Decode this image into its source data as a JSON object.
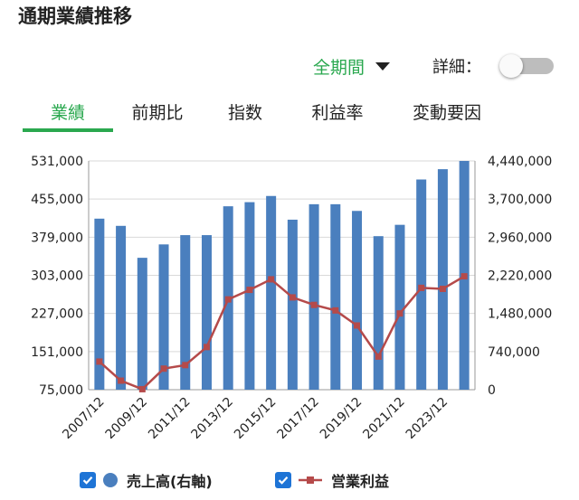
{
  "header": {
    "title": "通期業績推移"
  },
  "controls": {
    "period_label": "全期間",
    "detail_label": "詳細：",
    "detail_enabled": false
  },
  "tabs": [
    {
      "label": "業績",
      "active": true
    },
    {
      "label": "前期比",
      "active": false
    },
    {
      "label": "指数",
      "active": false
    },
    {
      "label": "利益率",
      "active": false
    },
    {
      "label": "変動要因",
      "active": false
    }
  ],
  "legend": [
    {
      "label": "売上高(右軸)",
      "checked": true,
      "color": "#4a7fbe",
      "marker": "circle"
    },
    {
      "label": "営業利益",
      "checked": true,
      "color": "#b54a4a",
      "marker": "line-square"
    }
  ],
  "colors": {
    "accent": "#2aa84f",
    "bar": "#4a7fbe",
    "line": "#b54a4a",
    "checkbox": "#1e74d6"
  },
  "chart_data": {
    "type": "bar",
    "categories": [
      "2007/12",
      "2008/12",
      "2009/12",
      "2010/12",
      "2011/12",
      "2012/12",
      "2013/12",
      "2014/12",
      "2015/12",
      "2016/12",
      "2017/12",
      "2018/12",
      "2019/12",
      "2020/12",
      "2021/12",
      "2022/12",
      "2023/12",
      "2024/12"
    ],
    "x_tick_labels": [
      "2007/12",
      "",
      "2009/12",
      "",
      "2011/12",
      "",
      "2013/12",
      "",
      "2015/12",
      "",
      "2017/12",
      "",
      "2019/12",
      "",
      "2021/12",
      "",
      "2023/12",
      ""
    ],
    "left_axis": {
      "ticks": [
        "531,000",
        "455,000",
        "379,000",
        "303,000",
        "227,000",
        "151,000",
        "75,000"
      ],
      "range": [
        75000,
        531000
      ]
    },
    "right_axis": {
      "ticks": [
        "4,440,000",
        "3,700,000",
        "2,960,000",
        "2,220,000",
        "1,480,000",
        "740,000",
        "0"
      ],
      "range": [
        0,
        4440000
      ]
    },
    "series": [
      {
        "name": "売上高(右軸)",
        "type": "bar",
        "axis": "right",
        "values": [
          3320000,
          3180000,
          2560000,
          2820000,
          3000000,
          3000000,
          3560000,
          3640000,
          3760000,
          3300000,
          3600000,
          3600000,
          3470000,
          2980000,
          3200000,
          4080000,
          4280000,
          4440000
        ]
      },
      {
        "name": "営業利益",
        "type": "line",
        "axis": "left",
        "values": [
          131000,
          93000,
          76000,
          117000,
          124000,
          160000,
          255000,
          274000,
          295000,
          259000,
          244000,
          233000,
          203000,
          141000,
          227000,
          278000,
          276000,
          301000
        ]
      }
    ],
    "grid": true
  }
}
